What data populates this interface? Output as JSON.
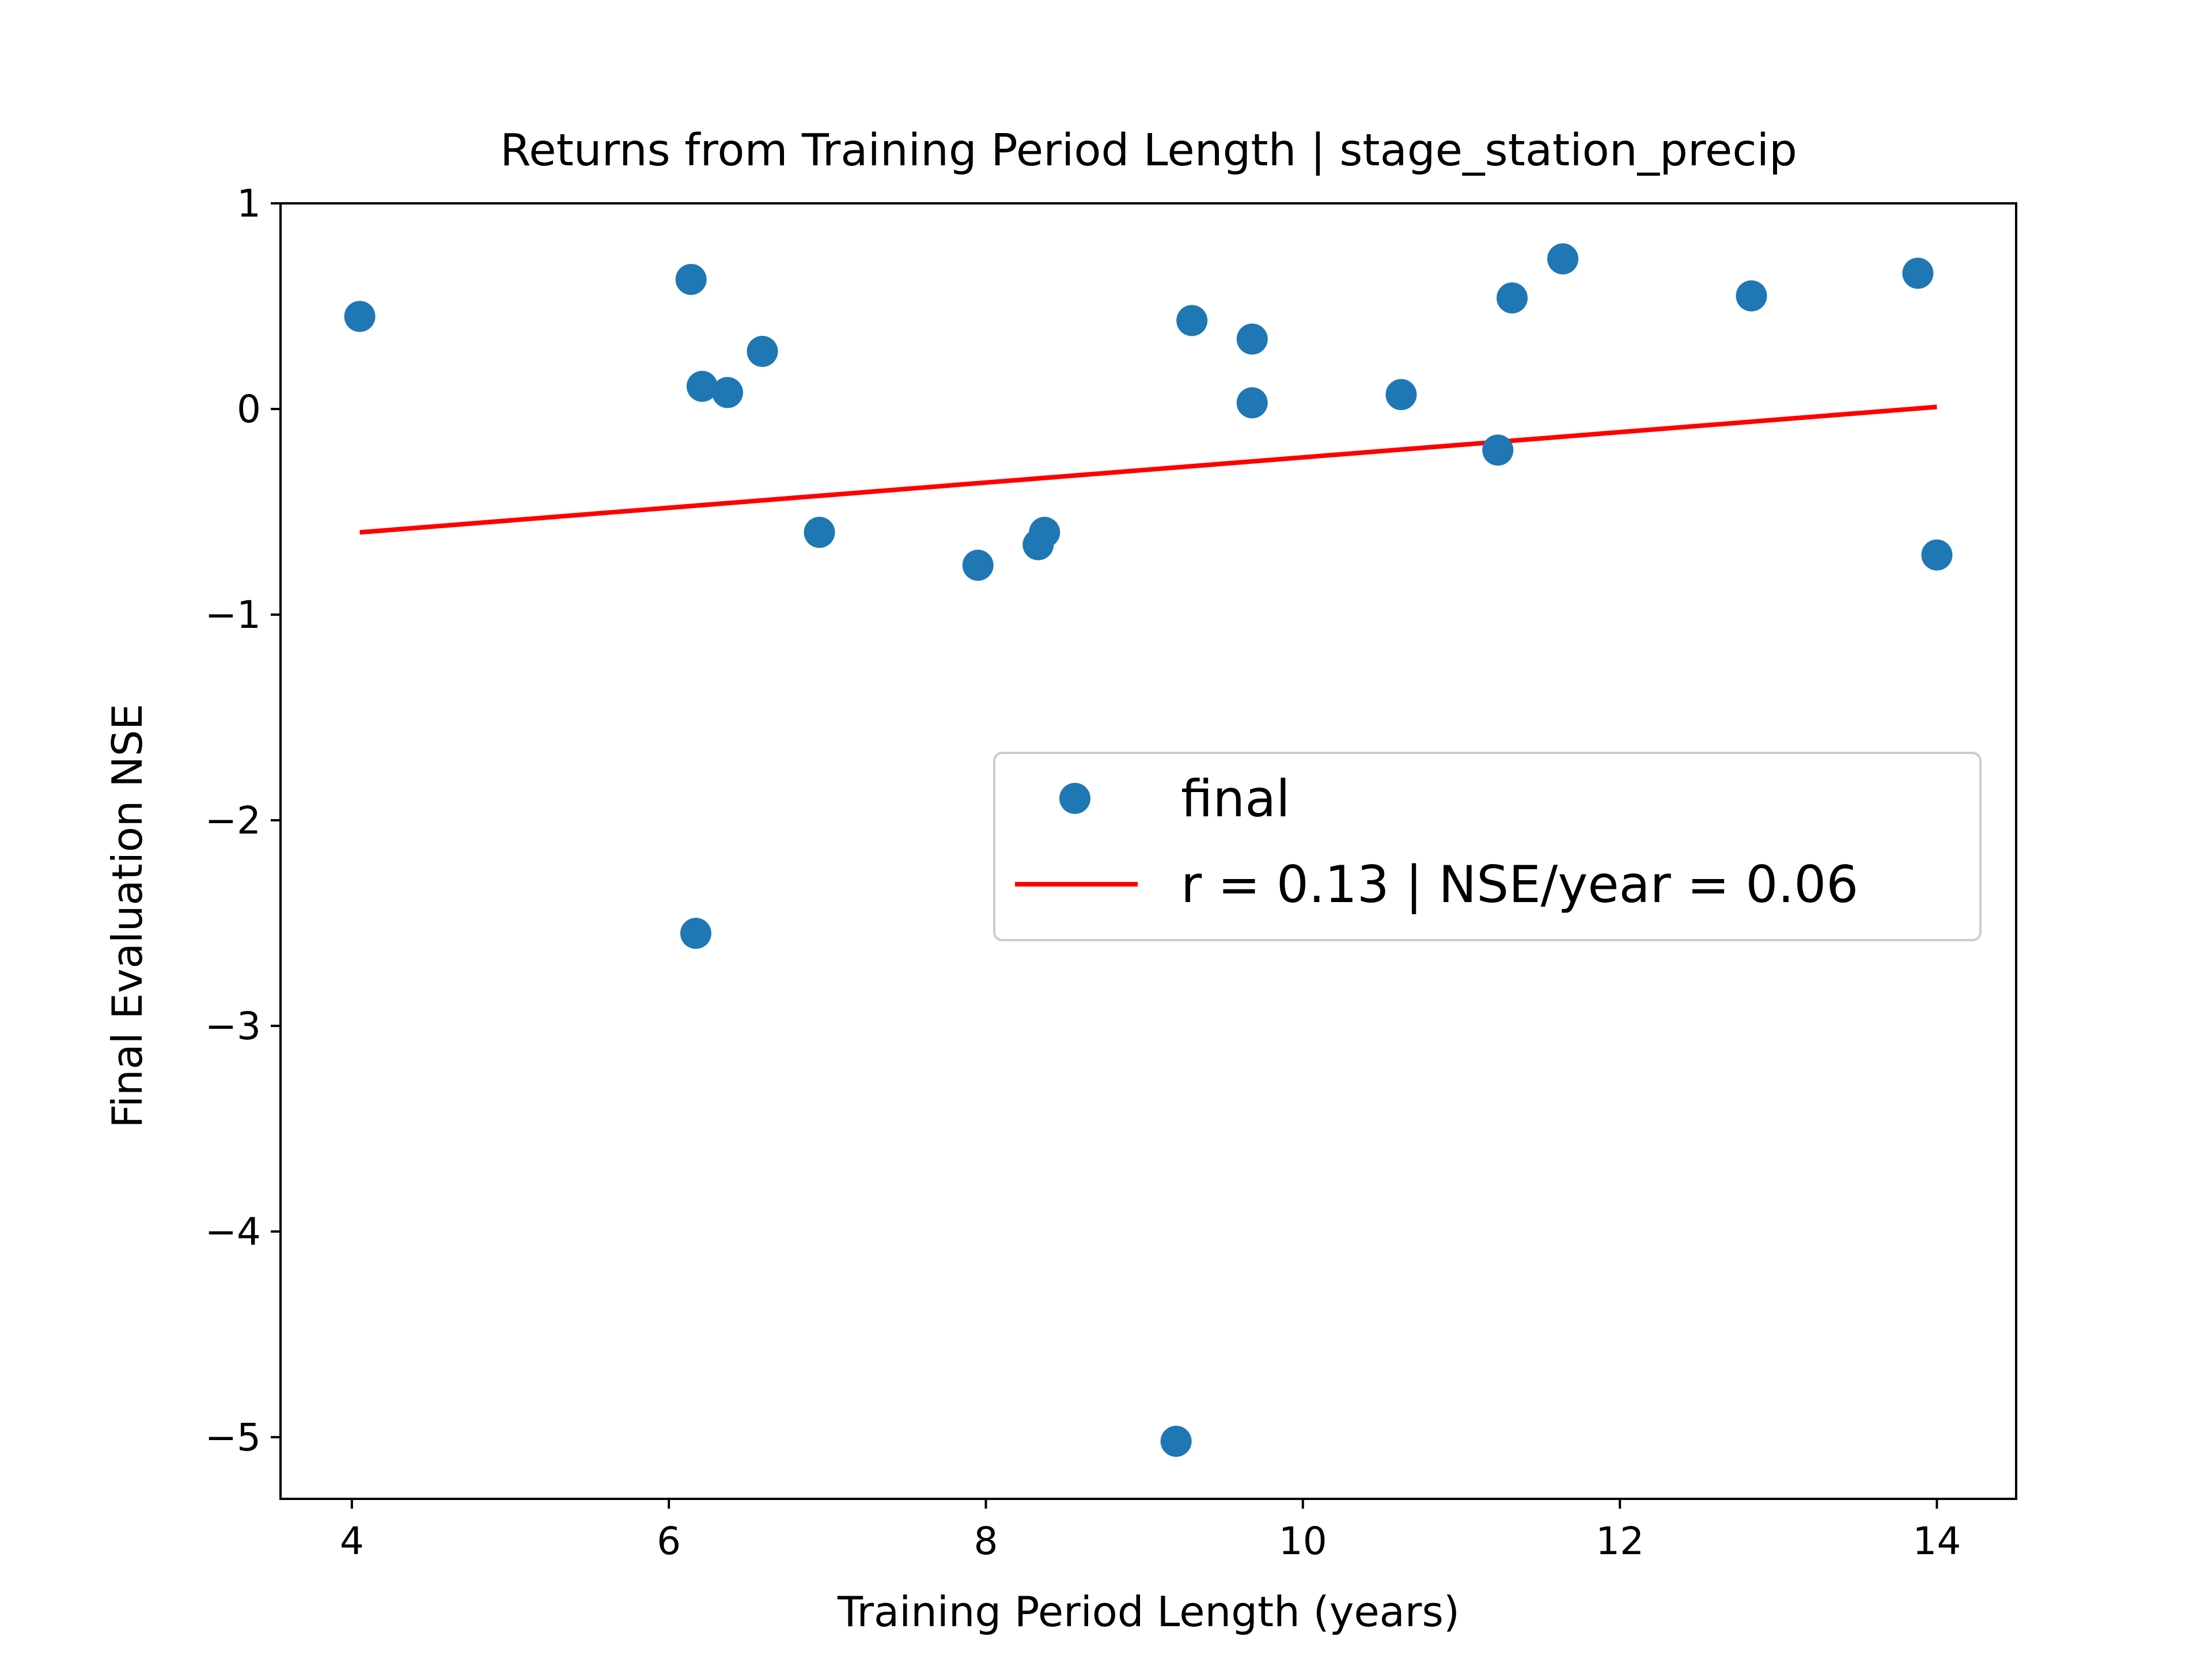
{
  "chart_data": {
    "type": "scatter",
    "title": "Returns from Training Period Length | stage_station_precip",
    "xlabel": "Training Period Length (years)",
    "ylabel": "Final Evaluation NSE",
    "xlim": [
      3.55,
      14.5
    ],
    "ylim": [
      -5.3,
      1.0
    ],
    "xticks": [
      4,
      6,
      8,
      10,
      12,
      14
    ],
    "yticks": [
      1,
      0,
      -1,
      -2,
      -3,
      -4,
      -5
    ],
    "xtick_labels": [
      "4",
      "6",
      "8",
      "10",
      "12",
      "14"
    ],
    "ytick_labels": [
      "1",
      "0",
      "−1",
      "−2",
      "−3",
      "−4",
      "−5"
    ],
    "grid": false,
    "legend_position": "center-right",
    "colors": {
      "points": "#1f77b4",
      "trend": "#ff0000"
    },
    "series": [
      {
        "name": "final",
        "kind": "scatter",
        "points": [
          {
            "x": 4.05,
            "y": 0.45
          },
          {
            "x": 6.14,
            "y": 0.63
          },
          {
            "x": 6.21,
            "y": 0.11
          },
          {
            "x": 6.37,
            "y": 0.08
          },
          {
            "x": 6.59,
            "y": 0.28
          },
          {
            "x": 6.17,
            "y": -2.55
          },
          {
            "x": 6.95,
            "y": -0.6
          },
          {
            "x": 7.95,
            "y": -0.76
          },
          {
            "x": 8.33,
            "y": -0.66
          },
          {
            "x": 8.37,
            "y": -0.6
          },
          {
            "x": 9.2,
            "y": -5.02
          },
          {
            "x": 9.3,
            "y": 0.43
          },
          {
            "x": 9.68,
            "y": 0.34
          },
          {
            "x": 9.68,
            "y": 0.03
          },
          {
            "x": 10.62,
            "y": 0.07
          },
          {
            "x": 11.23,
            "y": -0.2
          },
          {
            "x": 11.32,
            "y": 0.54
          },
          {
            "x": 11.64,
            "y": 0.73
          },
          {
            "x": 12.83,
            "y": 0.55
          },
          {
            "x": 13.88,
            "y": 0.66
          },
          {
            "x": 14.0,
            "y": -0.71
          }
        ]
      },
      {
        "name": "r = 0.13 | NSE/year = 0.06",
        "kind": "line",
        "points": [
          {
            "x": 4.05,
            "y": -0.6
          },
          {
            "x": 14.0,
            "y": 0.01
          }
        ]
      }
    ]
  }
}
